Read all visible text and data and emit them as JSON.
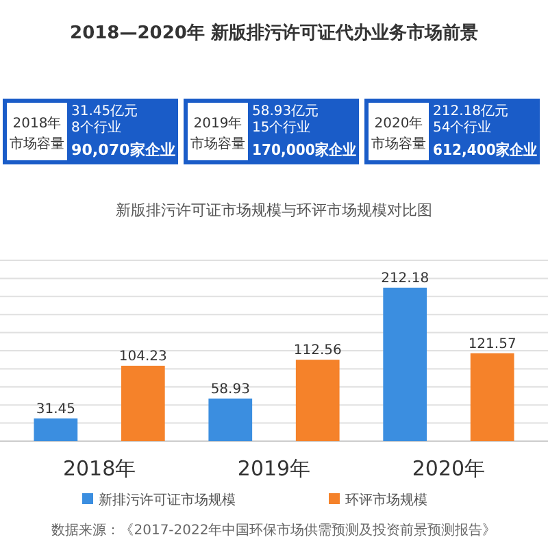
{
  "chart_data": {
    "type": "bar",
    "title": "2018—2020年 新版排污许可证代办业务市场前景",
    "subtitle": "新版排污许可证市场规模与环评市场规模对比图",
    "categories": [
      "2018年",
      "2019年",
      "2020年"
    ],
    "series": [
      {
        "name": "新排污许可证市场规模",
        "color": "#3b8ee0",
        "values": [
          31.45,
          58.93,
          212.18
        ]
      },
      {
        "name": "环评市场规模",
        "color": "#f5822a",
        "values": [
          104.23,
          112.56,
          121.57
        ]
      }
    ],
    "ylim": [
      0,
      250
    ],
    "yticks": [
      {
        "value": 0,
        "label": null
      },
      {
        "value": 25,
        "label": null
      },
      {
        "value": 50,
        "label": null
      },
      {
        "value": 75,
        "label": null
      },
      {
        "value": 100,
        "label": null
      },
      {
        "value": 125,
        "label": null
      },
      {
        "value": 150,
        "label": null
      },
      {
        "value": 175,
        "label": null
      },
      {
        "value": 200,
        "label": null
      },
      {
        "value": 225,
        "label": null
      },
      {
        "value": 250,
        "label": null
      }
    ],
    "grid": "y",
    "tick_labels": "x",
    "data_labels": true,
    "legend": "bottom",
    "annotations": [
      "2018年",
      "市场容量",
      "31.45亿元",
      "8个行业",
      "90,070家企业",
      "2019年",
      "市场容量",
      "58.93亿元",
      "15个行业",
      "170,000家企业",
      "2020年",
      "市场容量",
      "212.18亿元",
      "54个行业",
      "612,400家企业",
      "数据来源：《2017-2022年中国环保市场供需预测及投资前景预测报告》"
    ]
  }
}
